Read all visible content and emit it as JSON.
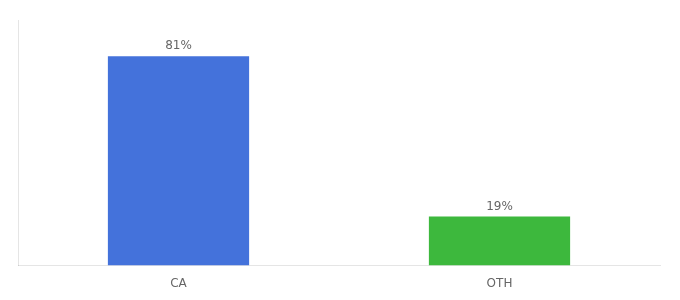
{
  "chart_data": {
    "type": "bar",
    "categories": [
      "CA",
      "OTH"
    ],
    "values": [
      81,
      19
    ],
    "value_labels": [
      "81%",
      "19%"
    ],
    "data_labels": true,
    "colors": [
      "#4472db",
      "#3db83d"
    ],
    "ylim": [
      0,
      95
    ],
    "grid": false,
    "tick_labels": "x"
  }
}
